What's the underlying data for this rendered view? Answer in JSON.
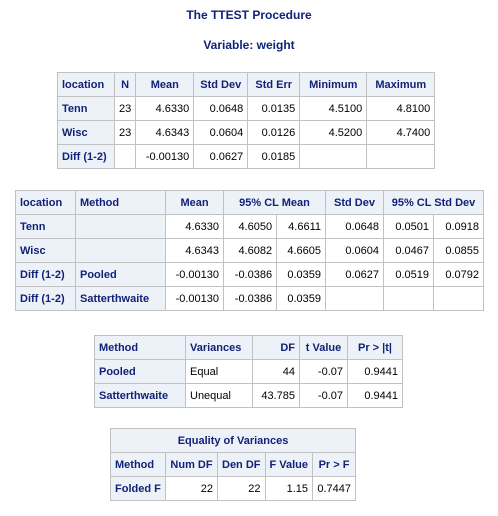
{
  "procedure_title": "The TTEST Procedure",
  "variable_title": "Variable: weight",
  "stats_table": {
    "headers": [
      "location",
      "N",
      "Mean",
      "Std Dev",
      "Std Err",
      "Minimum",
      "Maximum"
    ],
    "rows": [
      [
        "Tenn",
        "23",
        "4.6330",
        "0.0648",
        "0.0135",
        "4.5100",
        "4.8100"
      ],
      [
        "Wisc",
        "23",
        "4.6343",
        "0.0604",
        "0.0126",
        "4.5200",
        "4.7400"
      ],
      [
        "Diff (1-2)",
        "",
        "-0.00130",
        "0.0627",
        "0.0185",
        "",
        ""
      ]
    ]
  },
  "cl_table": {
    "headers": [
      "location",
      "Method",
      "Mean",
      "95% CL Mean",
      "Std Dev",
      "95% CL Std Dev"
    ],
    "rows": [
      [
        "Tenn",
        "",
        "4.6330",
        "4.6050",
        "4.6611",
        "0.0648",
        "0.0501",
        "0.0918"
      ],
      [
        "Wisc",
        "",
        "4.6343",
        "4.6082",
        "4.6605",
        "0.0604",
        "0.0467",
        "0.0855"
      ],
      [
        "Diff (1-2)",
        "Pooled",
        "-0.00130",
        "-0.0386",
        "0.0359",
        "0.0627",
        "0.0519",
        "0.0792"
      ],
      [
        "Diff (1-2)",
        "Satterthwaite",
        "-0.00130",
        "-0.0386",
        "0.0359",
        "",
        "",
        ""
      ]
    ]
  },
  "ttest_table": {
    "headers": [
      "Method",
      "Variances",
      "DF",
      "t Value",
      "Pr > |t|"
    ],
    "rows": [
      [
        "Pooled",
        "Equal",
        "44",
        "-0.07",
        "0.9441"
      ],
      [
        "Satterthwaite",
        "Unequal",
        "43.785",
        "-0.07",
        "0.9441"
      ]
    ]
  },
  "variance_table": {
    "title": "Equality of Variances",
    "headers": [
      "Method",
      "Num DF",
      "Den DF",
      "F Value",
      "Pr > F"
    ],
    "rows": [
      [
        "Folded F",
        "22",
        "22",
        "1.15",
        "0.7447"
      ]
    ]
  },
  "colors": {
    "header_bg": "#edf2f9",
    "header_text": "#112277",
    "border": "#c1c1c1"
  }
}
